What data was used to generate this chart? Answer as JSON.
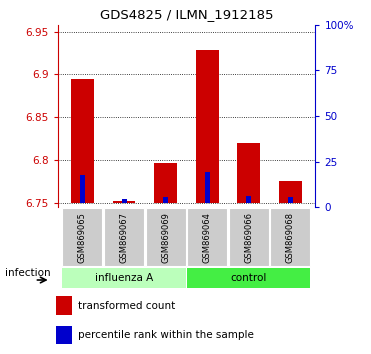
{
  "title": "GDS4825 / ILMN_1912185",
  "samples": [
    "GSM869065",
    "GSM869067",
    "GSM869069",
    "GSM869064",
    "GSM869066",
    "GSM869068"
  ],
  "ylim_left": [
    6.745,
    6.958
  ],
  "ylim_right": [
    0,
    100
  ],
  "yticks_left": [
    6.75,
    6.8,
    6.85,
    6.9,
    6.95
  ],
  "yticks_right": [
    0,
    25,
    50,
    75,
    100
  ],
  "ytick_labels_left": [
    "6.75",
    "6.8",
    "6.85",
    "6.9",
    "6.95"
  ],
  "ytick_labels_right": [
    "0",
    "25",
    "50",
    "75",
    "100%"
  ],
  "bar_bottom": 6.75,
  "red_values": [
    6.895,
    6.752,
    6.797,
    6.928,
    6.82,
    6.775
  ],
  "blue_values_pct": [
    15,
    2,
    3,
    17,
    4,
    3
  ],
  "red_color": "#cc0000",
  "blue_color": "#0000cc",
  "axis_color_left": "#cc0000",
  "axis_color_right": "#0000cc",
  "infection_label": "infection",
  "influenza_color": "#bbffbb",
  "control_color": "#44ee44",
  "legend_red": "transformed count",
  "legend_blue": "percentile rank within the sample",
  "title_fontsize": 9.5
}
